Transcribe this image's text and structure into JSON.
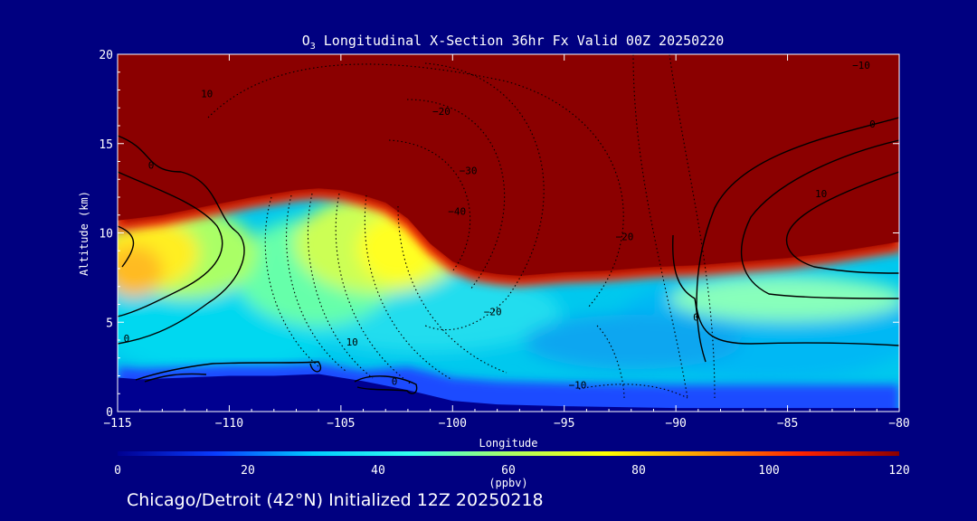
{
  "chart_data": {
    "type": "heatmap",
    "title_prefix": "O",
    "title_sub": "3",
    "title_rest": " Longitudinal X-Section 36hr  Fx Valid 00Z 20250220",
    "xlabel": "Longitude",
    "ylabel": "Altitude (km)",
    "xlim": [
      -115,
      -80
    ],
    "ylim": [
      0,
      20
    ],
    "x_ticks": [
      -115,
      -110,
      -105,
      -100,
      -95,
      -90,
      -85,
      -80
    ],
    "x_tick_labels": [
      "−115",
      "−110",
      "−105",
      "−100",
      "−95",
      "−90",
      "−85",
      "−80"
    ],
    "y_ticks": [
      0,
      5,
      10,
      15,
      20
    ],
    "y_tick_labels": [
      "0",
      "5",
      "10",
      "15",
      "20"
    ],
    "colorbar": {
      "min": 0,
      "max": 120,
      "unit": "(ppbv)",
      "ticks": [
        0,
        20,
        40,
        60,
        80,
        100,
        120
      ],
      "tick_labels": [
        "0",
        "20",
        "40",
        "60",
        "80",
        "100",
        "120"
      ],
      "stops": [
        {
          "v": 0,
          "color": "#000090"
        },
        {
          "v": 15,
          "color": "#0a3cff"
        },
        {
          "v": 30,
          "color": "#00ccff"
        },
        {
          "v": 45,
          "color": "#33ffee"
        },
        {
          "v": 60,
          "color": "#aaff66"
        },
        {
          "v": 75,
          "color": "#ffff00"
        },
        {
          "v": 90,
          "color": "#ff9900"
        },
        {
          "v": 105,
          "color": "#ff2200"
        },
        {
          "v": 120,
          "color": "#8b0000"
        }
      ]
    },
    "tropopause_km": [
      [
        -115,
        10.3
      ],
      [
        -113,
        10.6
      ],
      [
        -111,
        11.1
      ],
      [
        -109,
        11.6
      ],
      [
        -107,
        12.0
      ],
      [
        -106,
        12.1
      ],
      [
        -105,
        12.0
      ],
      [
        -104,
        11.7
      ],
      [
        -103,
        11.3
      ],
      [
        -102,
        10.4
      ],
      [
        -101,
        9.0
      ],
      [
        -100,
        8.0
      ],
      [
        -99,
        7.5
      ],
      [
        -98,
        7.3
      ],
      [
        -97,
        7.2
      ],
      [
        -95,
        7.4
      ],
      [
        -93,
        7.5
      ],
      [
        -91,
        7.7
      ],
      [
        -89,
        7.8
      ],
      [
        -87,
        8.0
      ],
      [
        -85,
        8.2
      ],
      [
        -83,
        8.5
      ],
      [
        -81,
        8.9
      ],
      [
        -80,
        9.1
      ]
    ],
    "terrain_km": [
      [
        -115,
        1.9
      ],
      [
        -114,
        1.8
      ],
      [
        -112,
        1.9
      ],
      [
        -110,
        2.0
      ],
      [
        -108,
        2.0
      ],
      [
        -106,
        2.1
      ],
      [
        -105,
        1.9
      ],
      [
        -104,
        1.7
      ],
      [
        -102,
        1.2
      ],
      [
        -100,
        0.6
      ],
      [
        -98,
        0.4
      ],
      [
        -95,
        0.3
      ],
      [
        -90,
        0.2
      ],
      [
        -85,
        0.2
      ],
      [
        -80,
        0.2
      ]
    ],
    "contour_labels": [
      {
        "text": "0",
        "lon": -113.5,
        "alt": 13.6
      },
      {
        "text": "10",
        "lon": -111.0,
        "alt": 17.6
      },
      {
        "text": "−20",
        "lon": -100.5,
        "alt": 16.6
      },
      {
        "text": "−30",
        "lon": -99.3,
        "alt": 13.3
      },
      {
        "text": "−40",
        "lon": -99.8,
        "alt": 11.0
      },
      {
        "text": "−10",
        "lon": -81.7,
        "alt": 19.2
      },
      {
        "text": "0",
        "lon": -81.2,
        "alt": 15.9
      },
      {
        "text": "10",
        "lon": -83.5,
        "alt": 12.0
      },
      {
        "text": "−20",
        "lon": -92.3,
        "alt": 9.6
      },
      {
        "text": "−20",
        "lon": -98.2,
        "alt": 5.4
      },
      {
        "text": "10",
        "lon": -104.5,
        "alt": 3.7
      },
      {
        "text": "0",
        "lon": -114.6,
        "alt": 3.9
      },
      {
        "text": "0",
        "lon": -89.1,
        "alt": 5.1
      },
      {
        "text": "−10",
        "lon": -94.4,
        "alt": 1.3
      },
      {
        "text": "0",
        "lon": -102.6,
        "alt": 1.5
      }
    ]
  },
  "footer": "Chicago/Detroit (42°N) Initialized 12Z 20250218"
}
